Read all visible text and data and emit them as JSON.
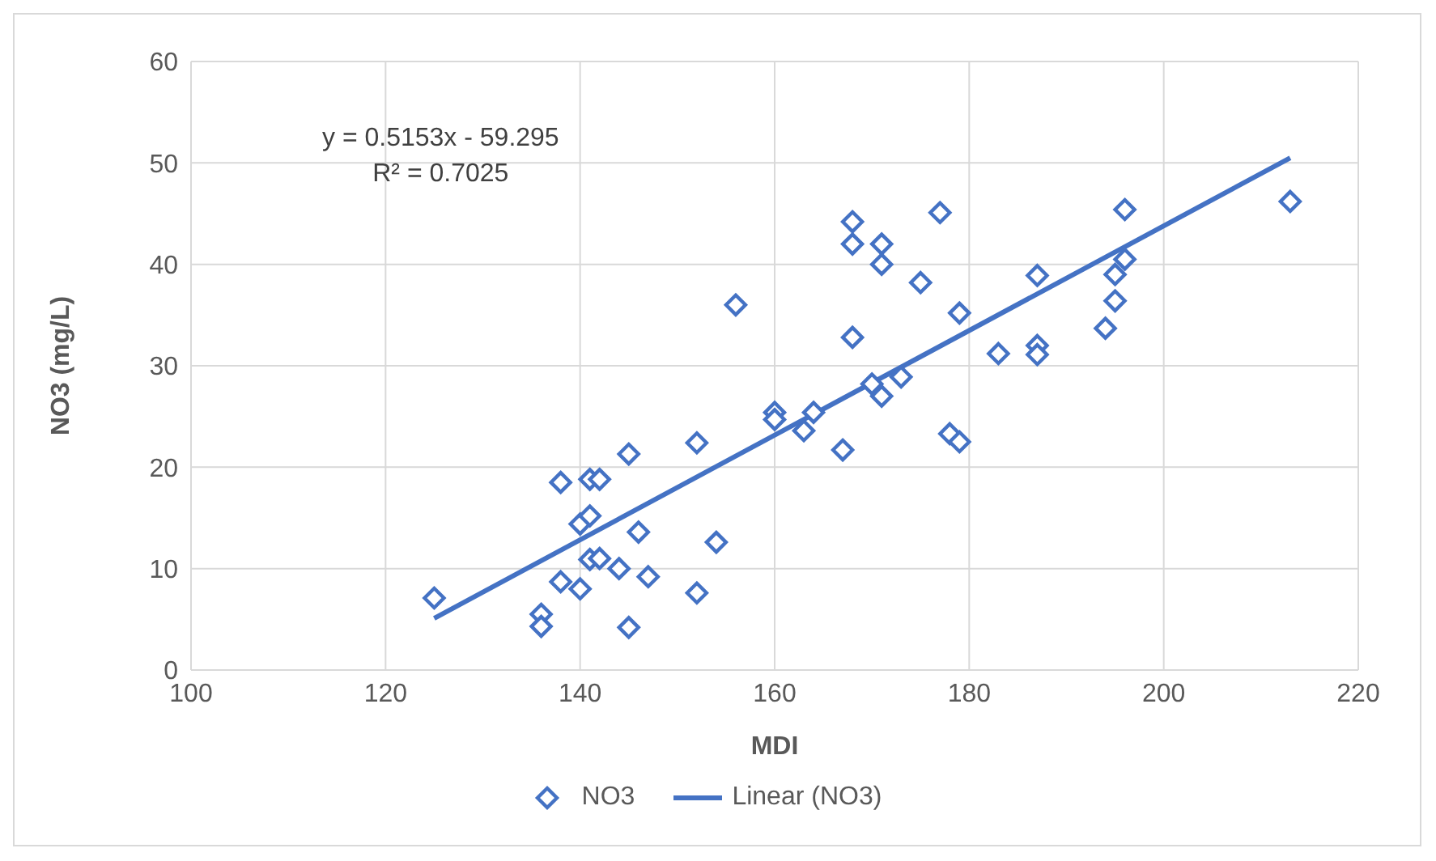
{
  "chart_data": {
    "type": "scatter",
    "xlabel": "MDI",
    "ylabel": "NO3 (mg/L)",
    "annotations": [
      "y = 0.5153x - 59.295",
      "R² = 0.7025"
    ],
    "series": [
      {
        "name": "NO3",
        "color": "#4472c4",
        "marker": "diamond",
        "x": [
          125,
          136,
          136,
          138,
          138,
          140,
          140,
          141,
          141,
          141,
          142,
          142,
          144,
          145,
          145,
          146,
          147,
          152,
          152,
          154,
          156,
          160,
          160,
          163,
          164,
          167,
          168,
          168,
          168,
          170,
          171,
          171,
          171,
          173,
          175,
          177,
          178,
          179,
          179,
          183,
          187,
          187,
          187,
          194,
          195,
          195,
          196,
          196,
          213
        ],
        "values": [
          7.1,
          5.5,
          4.3,
          18.5,
          8.7,
          8,
          14.4,
          15.2,
          10.9,
          18.8,
          18.8,
          11,
          10,
          21.3,
          4.2,
          13.6,
          9.2,
          22.4,
          7.6,
          12.6,
          36,
          25.4,
          24.7,
          23.6,
          25.4,
          21.7,
          44.2,
          42,
          32.8,
          28.2,
          42,
          40,
          27,
          28.9,
          38.2,
          45.1,
          23.3,
          35.2,
          22.5,
          31.2,
          38.9,
          32,
          31.1,
          33.7,
          39,
          36.4,
          45.4,
          40.5,
          46.2
        ]
      },
      {
        "name": "Linear (NO3)",
        "type": "line",
        "color": "#4472c4",
        "marker": "none",
        "line_style": "solid",
        "x": [
          125,
          213
        ],
        "values": [
          5.1,
          50.5
        ]
      }
    ],
    "xlim": [
      100,
      220
    ],
    "xticks": [
      100,
      120,
      140,
      160,
      180,
      200,
      220
    ],
    "ylim": [
      0,
      60
    ],
    "yticks": [
      0,
      10,
      20,
      30,
      40,
      50,
      60
    ],
    "grid": true,
    "legend": "bottom"
  }
}
